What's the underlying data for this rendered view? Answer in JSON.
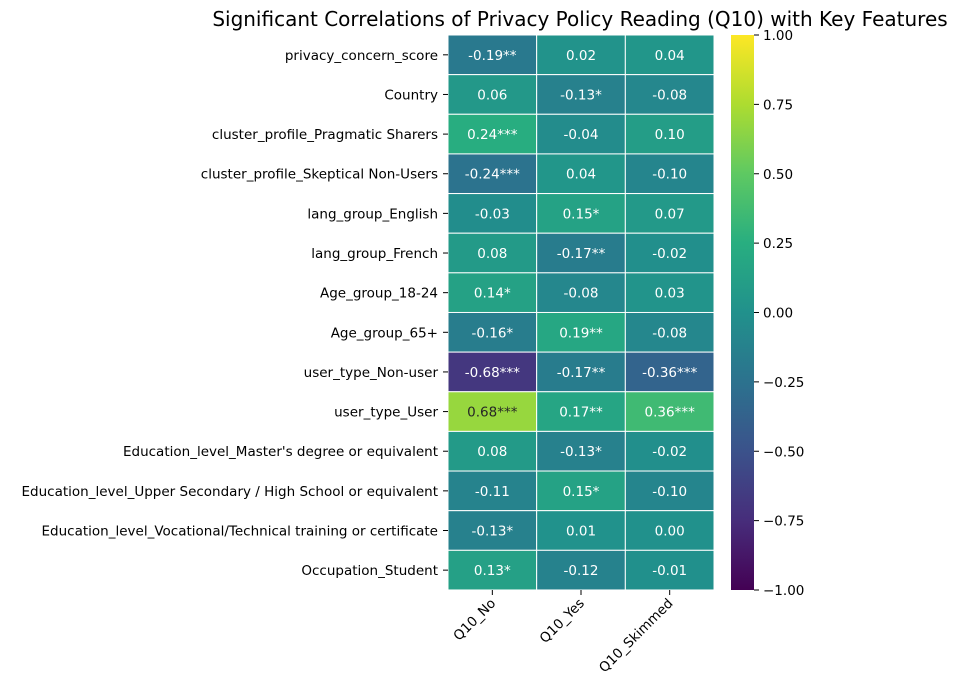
{
  "chart_data": {
    "type": "heatmap",
    "title": "Significant Correlations of Privacy Policy Reading (Q10) with Key Features",
    "xlabel": "",
    "ylabel": "",
    "columns": [
      "Q10_No",
      "Q10_Yes",
      "Q10_Skimmed"
    ],
    "rows": [
      "privacy_concern_score",
      "Country",
      "cluster_profile_Pragmatic Sharers",
      "cluster_profile_Skeptical Non-Users",
      "lang_group_English",
      "lang_group_French",
      "Age_group_18-24",
      "Age_group_65+",
      "user_type_Non-user",
      "user_type_User",
      "Education_level_Master's degree or equivalent",
      "Education_level_Upper Secondary / High School or equivalent",
      "Education_level_Vocational/Technical training or certificate",
      "Occupation_Student"
    ],
    "values": [
      [
        -0.19,
        0.02,
        0.04
      ],
      [
        0.06,
        -0.13,
        -0.08
      ],
      [
        0.24,
        -0.04,
        0.1
      ],
      [
        -0.24,
        0.04,
        -0.1
      ],
      [
        -0.03,
        0.15,
        0.07
      ],
      [
        0.08,
        -0.17,
        -0.02
      ],
      [
        0.14,
        -0.08,
        0.03
      ],
      [
        -0.16,
        0.19,
        -0.08
      ],
      [
        -0.68,
        -0.17,
        -0.36
      ],
      [
        0.68,
        0.17,
        0.36
      ],
      [
        0.08,
        -0.13,
        -0.02
      ],
      [
        -0.11,
        0.15,
        -0.1
      ],
      [
        -0.13,
        0.01,
        0.0
      ],
      [
        0.13,
        -0.12,
        -0.01
      ]
    ],
    "annotations": [
      [
        "-0.19**",
        "0.02",
        "0.04"
      ],
      [
        "0.06",
        "-0.13*",
        "-0.08"
      ],
      [
        "0.24***",
        "-0.04",
        "0.10"
      ],
      [
        "-0.24***",
        "0.04",
        "-0.10"
      ],
      [
        "-0.03",
        "0.15*",
        "0.07"
      ],
      [
        "0.08",
        "-0.17**",
        "-0.02"
      ],
      [
        "0.14*",
        "-0.08",
        "0.03"
      ],
      [
        "-0.16*",
        "0.19**",
        "-0.08"
      ],
      [
        "-0.68***",
        "-0.17**",
        "-0.36***"
      ],
      [
        "0.68***",
        "0.17**",
        "0.36***"
      ],
      [
        "0.08",
        "-0.13*",
        "-0.02"
      ],
      [
        "-0.11",
        "0.15*",
        "-0.10"
      ],
      [
        "-0.13*",
        "0.01",
        "0.00"
      ],
      [
        "0.13*",
        "-0.12",
        "-0.01"
      ]
    ],
    "colormap": "viridis",
    "vmin": -1.0,
    "vmax": 1.0,
    "colorbar_ticks": [
      "1.00",
      "0.75",
      "0.50",
      "0.25",
      "0.00",
      "−0.25",
      "−0.50",
      "−0.75",
      "−1.00"
    ],
    "colorbar_tick_values": [
      1.0,
      0.75,
      0.5,
      0.25,
      0.0,
      -0.25,
      -0.5,
      -0.75,
      -1.0
    ]
  }
}
